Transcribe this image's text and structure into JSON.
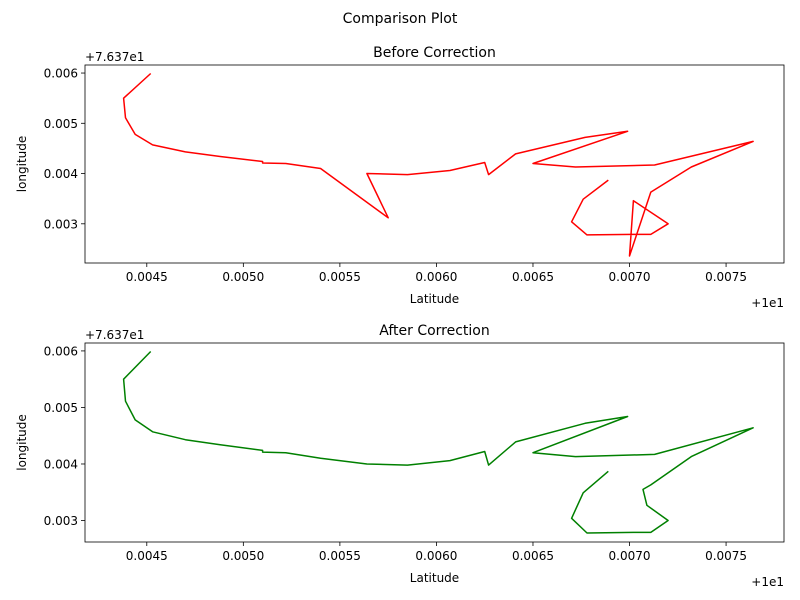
{
  "figure": {
    "suptitle": "Comparison Plot"
  },
  "chart_data": [
    {
      "type": "line",
      "title": "Before Correction",
      "xlabel": "Latitude",
      "ylabel": "longitude",
      "x_offset_label": "+1e1",
      "y_offset_label": "+7.637e1",
      "xlim": [
        0.00418,
        0.0078
      ],
      "ylim": [
        0.00222,
        0.00616
      ],
      "xticks": [
        0.0045,
        0.005,
        0.0055,
        0.006,
        0.0065,
        0.007,
        0.0075
      ],
      "xtick_labels": [
        "0.0045",
        "0.0050",
        "0.0055",
        "0.0060",
        "0.0065",
        "0.0070",
        "0.0075"
      ],
      "yticks": [
        0.003,
        0.004,
        0.005,
        0.006
      ],
      "ytick_labels": [
        "0.003",
        "0.004",
        "0.005",
        "0.006"
      ],
      "grid": false,
      "series": [
        {
          "color": "#ff0000",
          "x": [
            0.00689,
            0.00676,
            0.0067,
            0.00678,
            0.00702,
            0.00711,
            0.0072,
            0.00702,
            0.007,
            0.00711,
            0.00732,
            0.00764,
            0.00713,
            0.00672,
            0.0065,
            0.00699,
            0.00677,
            0.00641,
            0.00627,
            0.00625,
            0.00607,
            0.00585,
            0.00564,
            0.00575,
            0.0054,
            0.00522,
            0.0051,
            0.0051,
            0.00488,
            0.0047,
            0.00453,
            0.00444,
            0.00439,
            0.00438,
            0.00452
          ],
          "y": [
            0.00387,
            0.00349,
            0.00304,
            0.00278,
            0.00279,
            0.00279,
            0.003,
            0.00346,
            0.00236,
            0.00363,
            0.00413,
            0.00464,
            0.00417,
            0.00413,
            0.0042,
            0.00484,
            0.00472,
            0.00439,
            0.00398,
            0.00422,
            0.00406,
            0.00398,
            0.004,
            0.00312,
            0.0041,
            0.0042,
            0.00421,
            0.00424,
            0.00434,
            0.00443,
            0.00457,
            0.00478,
            0.00511,
            0.0055,
            0.00599
          ]
        }
      ]
    },
    {
      "type": "line",
      "title": "After Correction",
      "xlabel": "Latitude",
      "ylabel": "longitude",
      "x_offset_label": "+1e1",
      "y_offset_label": "+7.637e1",
      "xlim": [
        0.00418,
        0.0078
      ],
      "ylim": [
        0.00262,
        0.00614
      ],
      "xticks": [
        0.0045,
        0.005,
        0.0055,
        0.006,
        0.0065,
        0.007,
        0.0075
      ],
      "xtick_labels": [
        "0.0045",
        "0.0050",
        "0.0055",
        "0.0060",
        "0.0065",
        "0.0070",
        "0.0075"
      ],
      "yticks": [
        0.003,
        0.004,
        0.005,
        0.006
      ],
      "ytick_labels": [
        "0.003",
        "0.004",
        "0.005",
        "0.006"
      ],
      "grid": false,
      "series": [
        {
          "color": "#008000",
          "x": [
            0.00689,
            0.00676,
            0.0067,
            0.00678,
            0.00702,
            0.00711,
            0.0072,
            0.00709,
            0.00707,
            0.00711,
            0.00732,
            0.00764,
            0.00713,
            0.00672,
            0.0065,
            0.00699,
            0.00677,
            0.00641,
            0.00627,
            0.00625,
            0.00607,
            0.00585,
            0.00564,
            0.0054,
            0.00522,
            0.0051,
            0.0051,
            0.00488,
            0.0047,
            0.00453,
            0.00444,
            0.00439,
            0.00438,
            0.00452
          ],
          "y": [
            0.00387,
            0.00349,
            0.00304,
            0.00278,
            0.00279,
            0.00279,
            0.003,
            0.00327,
            0.00355,
            0.00363,
            0.00413,
            0.00464,
            0.00417,
            0.00413,
            0.0042,
            0.00484,
            0.00472,
            0.00439,
            0.00398,
            0.00422,
            0.00406,
            0.00398,
            0.004,
            0.0041,
            0.0042,
            0.00421,
            0.00424,
            0.00434,
            0.00443,
            0.00457,
            0.00478,
            0.00511,
            0.0055,
            0.00599
          ]
        }
      ]
    }
  ]
}
